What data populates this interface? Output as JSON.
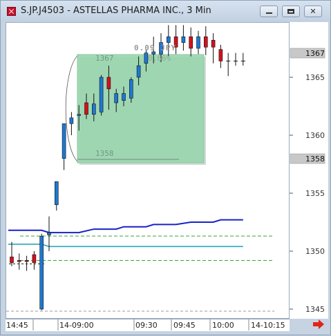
{
  "window": {
    "title": "S.JP.J4503 - ASTELLAS PHARMA INC., 3 Min"
  },
  "colors": {
    "up_candle": "#1e78d2",
    "down_candle": "#d4111b",
    "blue_line": "#1a20c8",
    "cyan_line": "#22aab8",
    "green_dashed": "#33a833",
    "selection_fill": "#9bd6b0",
    "price_marker": "#c8c8c8"
  },
  "annotation": {
    "change_label": "0.09 JPY",
    "percent_label": "0.66%",
    "high_label": "1367",
    "low_label": "1358"
  },
  "price_markers": [
    "1367",
    "1358"
  ],
  "chart_data": {
    "type": "candlestick",
    "title": "",
    "xlabel": "",
    "ylabel": "",
    "ylim": [
      1344.5,
      1371.5
    ],
    "y_ticks": [
      1345,
      1350,
      1355,
      1360,
      1365
    ],
    "x_tick_labels": [
      "14:45",
      "14-09:00",
      "09:30",
      "09:45",
      "10:00",
      "14-10:15"
    ],
    "candles": [
      {
        "o": 1349.5,
        "h": 1350.8,
        "l": 1348.7,
        "c": 1349.0
      },
      {
        "o": 1349.2,
        "h": 1349.8,
        "l": 1348.4,
        "c": 1349.1
      },
      {
        "o": 1349.2,
        "h": 1349.6,
        "l": 1348.3,
        "c": 1349.1
      },
      {
        "o": 1349.7,
        "h": 1350.0,
        "l": 1348.4,
        "c": 1349.0
      },
      {
        "o": 1345.0,
        "h": 1351.5,
        "l": 1344.9,
        "c": 1351.3
      },
      {
        "o": 1351.4,
        "h": 1353.0,
        "l": 1350.0,
        "c": 1351.6
      },
      {
        "o": 1354.0,
        "h": 1356.0,
        "l": 1353.5,
        "c": 1356.0
      },
      {
        "o": 1358.0,
        "h": 1361.0,
        "l": 1357.0,
        "c": 1361.0
      },
      {
        "o": 1361.0,
        "h": 1362.0,
        "l": 1360.0,
        "c": 1361.5
      },
      {
        "o": 1361.7,
        "h": 1362.6,
        "l": 1360.4,
        "c": 1361.8
      },
      {
        "o": 1362.8,
        "h": 1363.6,
        "l": 1361.4,
        "c": 1361.8
      },
      {
        "o": 1361.8,
        "h": 1363.6,
        "l": 1361.2,
        "c": 1362.7
      },
      {
        "o": 1362.0,
        "h": 1365.2,
        "l": 1361.7,
        "c": 1365.0
      },
      {
        "o": 1365.0,
        "h": 1366.0,
        "l": 1362.2,
        "c": 1364.0
      },
      {
        "o": 1362.8,
        "h": 1364.0,
        "l": 1362.0,
        "c": 1363.6
      },
      {
        "o": 1363.0,
        "h": 1364.2,
        "l": 1362.5,
        "c": 1363.6
      },
      {
        "o": 1363.2,
        "h": 1365.0,
        "l": 1362.8,
        "c": 1364.8
      },
      {
        "o": 1365.0,
        "h": 1366.8,
        "l": 1364.3,
        "c": 1366.0
      },
      {
        "o": 1366.2,
        "h": 1367.4,
        "l": 1365.5,
        "c": 1367.1
      },
      {
        "o": 1367.0,
        "h": 1368.5,
        "l": 1366.2,
        "c": 1367.2
      },
      {
        "o": 1367.0,
        "h": 1368.8,
        "l": 1366.3,
        "c": 1368.0
      },
      {
        "o": 1368.0,
        "h": 1369.5,
        "l": 1366.8,
        "c": 1368.5
      },
      {
        "o": 1368.5,
        "h": 1369.5,
        "l": 1367.0,
        "c": 1367.6
      },
      {
        "o": 1368.0,
        "h": 1369.5,
        "l": 1367.3,
        "c": 1368.5
      },
      {
        "o": 1368.5,
        "h": 1369.3,
        "l": 1366.8,
        "c": 1367.5
      },
      {
        "o": 1367.5,
        "h": 1369.0,
        "l": 1367.0,
        "c": 1368.5
      },
      {
        "o": 1368.5,
        "h": 1369.4,
        "l": 1366.9,
        "c": 1367.6
      },
      {
        "o": 1368.2,
        "h": 1368.8,
        "l": 1366.2,
        "c": 1367.6
      },
      {
        "o": 1367.4,
        "h": 1367.8,
        "l": 1365.8,
        "c": 1366.4
      },
      {
        "o": 1366.4,
        "h": 1367.1,
        "l": 1365.1,
        "c": 1366.4
      },
      {
        "o": 1366.4,
        "h": 1367.1,
        "l": 1366.0,
        "c": 1366.4
      },
      {
        "o": 1366.4,
        "h": 1367.1,
        "l": 1366.0,
        "c": 1366.4
      }
    ],
    "blue_line": [
      [
        0,
        1351.8
      ],
      [
        4,
        1351.8
      ],
      [
        5,
        1351.6
      ],
      [
        9,
        1351.6
      ],
      [
        11,
        1351.9
      ],
      [
        14,
        1351.9
      ],
      [
        15,
        1352.1
      ],
      [
        18,
        1352.1
      ],
      [
        19,
        1352.3
      ],
      [
        22,
        1352.3
      ],
      [
        24,
        1352.5
      ],
      [
        27,
        1352.5
      ],
      [
        28,
        1352.7
      ],
      [
        31,
        1352.7
      ]
    ],
    "cyan_line": [
      [
        0,
        1350.6
      ],
      [
        4,
        1350.6
      ],
      [
        5,
        1350.4
      ],
      [
        31,
        1350.4
      ]
    ],
    "green_dashed_levels": [
      1351.3,
      1349.2
    ],
    "black_dashed_short": {
      "from": 0,
      "to": 4,
      "y": 1348.9
    },
    "selection_box": {
      "from_price": 1358,
      "to_price": 1367
    }
  }
}
